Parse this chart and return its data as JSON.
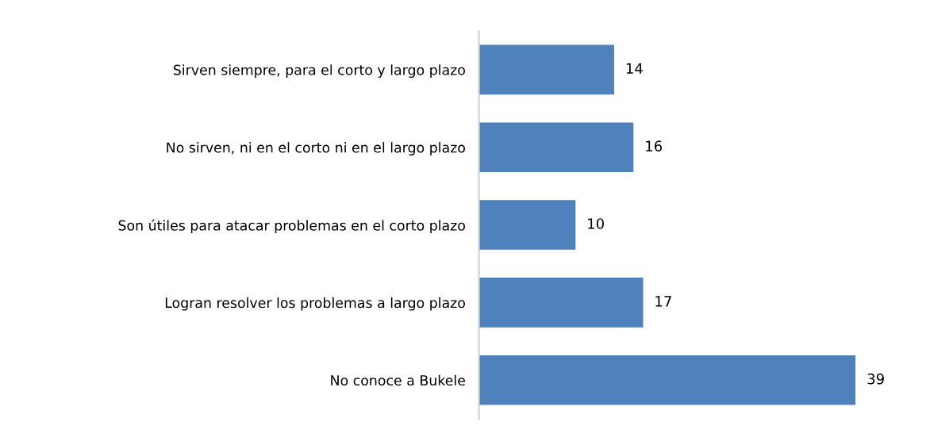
{
  "chart_data": {
    "type": "bar",
    "orientation": "horizontal",
    "categories": [
      "Sirven siempre, para el corto y largo plazo",
      "No sirven, ni en el corto ni en el largo plazo",
      "Son útiles para atacar problemas en el corto plazo",
      "Logran resolver los problemas a largo plazo",
      "No conoce a Bukele"
    ],
    "values": [
      14,
      16,
      10,
      17,
      39
    ],
    "color": "#4f81bd",
    "data_labels": true,
    "tick_labels": "y"
  }
}
